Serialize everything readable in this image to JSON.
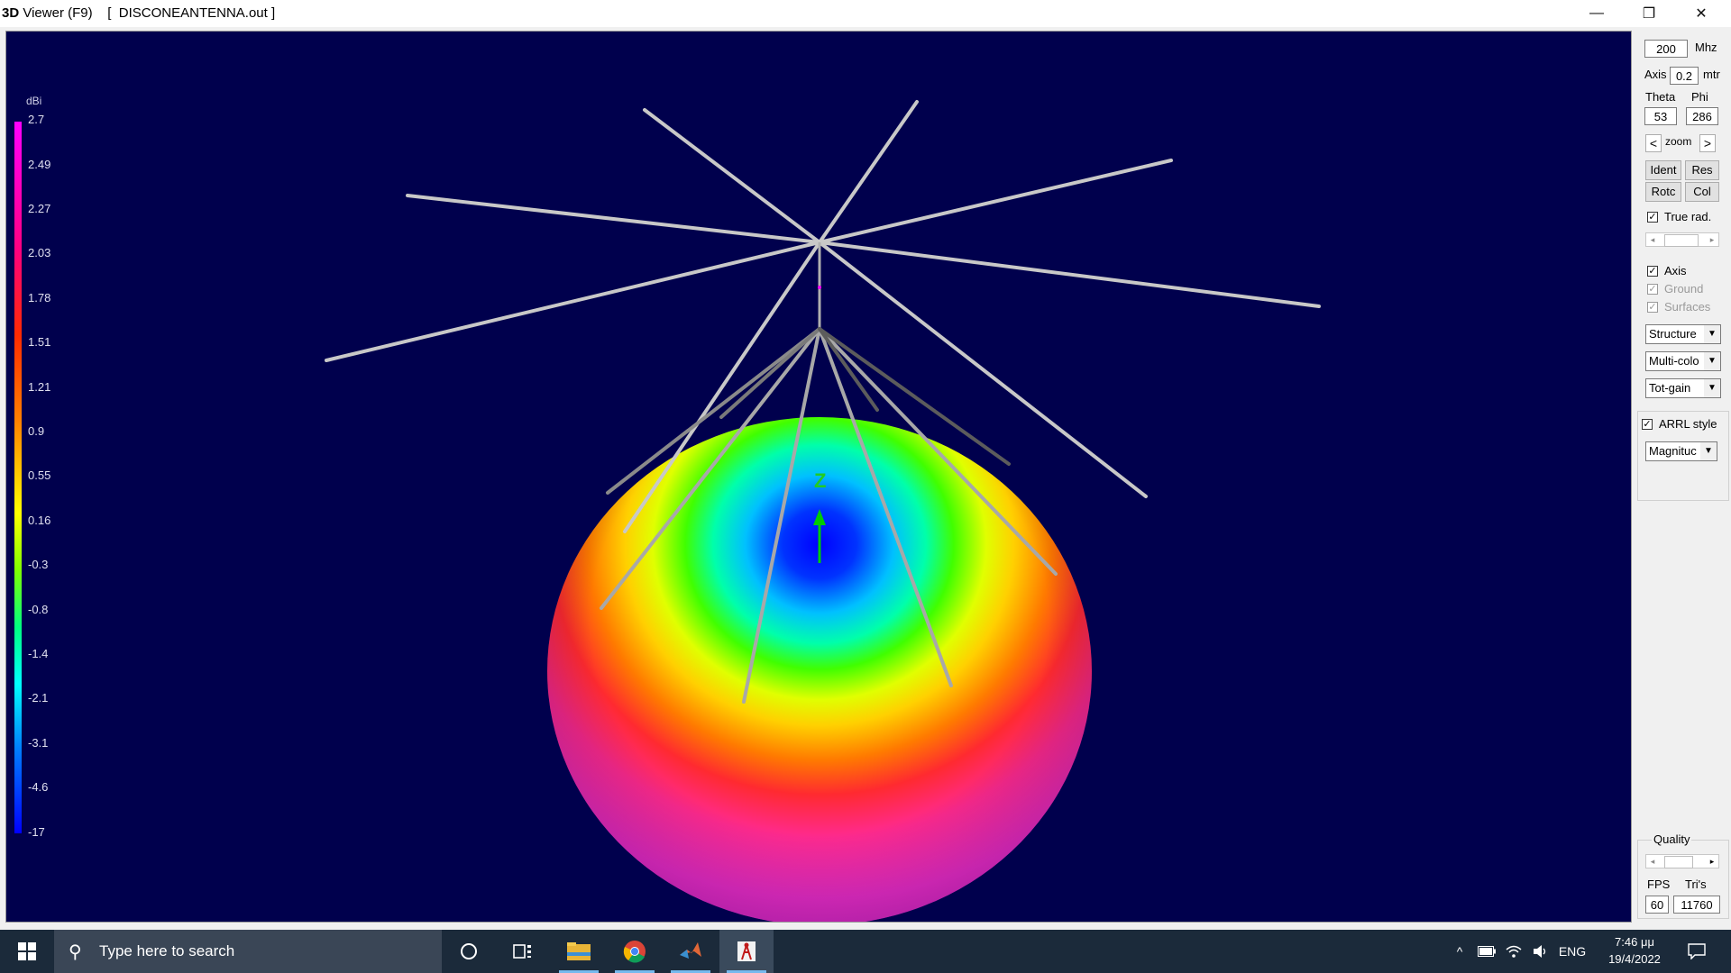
{
  "window": {
    "title_prefix": "3D",
    "title_rest": " Viewer (F9)    [  DISCONEANTENNA.out ]",
    "controls": {
      "minimize": "—",
      "restore": "❐",
      "close": "✕"
    }
  },
  "legend": {
    "unit": "dBi",
    "ticks": [
      "2.7",
      "2.49",
      "2.27",
      "2.03",
      "1.78",
      "1.51",
      "1.21",
      "0.9",
      "0.55",
      "0.16",
      "-0.3",
      "-0.8",
      "-1.4",
      "-2.1",
      "-3.1",
      "-4.6",
      "-17"
    ]
  },
  "viewport": {
    "axis_label": "Z",
    "background": "#00004d"
  },
  "panel": {
    "frequency_value": "200",
    "frequency_unit": "Mhz",
    "axis_label": "Axis",
    "axis_value": "0.2",
    "axis_unit": "mtr",
    "theta_label": "Theta",
    "phi_label": "Phi",
    "theta_value": "53",
    "phi_value": "286",
    "zoom_label": "zoom",
    "zoom_left": "<",
    "zoom_right": ">",
    "buttons": {
      "ident": "Ident",
      "res": "Res",
      "rotc": "Rotc",
      "col": "Col"
    },
    "true_rad": {
      "label": "True rad.",
      "checked": true
    },
    "axis_check": {
      "label": "Axis",
      "checked": true
    },
    "ground_check": {
      "label": "Ground",
      "checked": true
    },
    "surfaces_check": {
      "label": "Surfaces",
      "checked": true
    },
    "select_structure": "Structure",
    "select_color": "Multi-colo",
    "select_gain": "Tot-gain",
    "arrl_style": {
      "label": "ARRL style",
      "checked": true
    },
    "select_magnitude": "Magnituc",
    "quality_label": "Quality",
    "fps_label": "FPS",
    "tris_label": "Tri's",
    "fps_value": "60",
    "tris_value": "11760"
  },
  "taskbar": {
    "search_placeholder": "Type here to search",
    "language": "ENG",
    "time": "7:46 μμ",
    "date": "19/4/2022"
  }
}
